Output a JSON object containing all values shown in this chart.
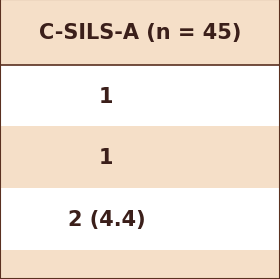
{
  "header_text": "C-SILS-A (n = 45)",
  "rows": [
    "1",
    "1",
    "2 (4.4)"
  ],
  "header_bg": "#f5dfc8",
  "row_bg_odd": "#ffffff",
  "row_bg_even": "#f5dfc8",
  "text_color": "#3b1f1a",
  "border_color": "#5a3020",
  "header_fontsize": 15,
  "row_fontsize": 15,
  "fig_bg": "#f5dfc8"
}
